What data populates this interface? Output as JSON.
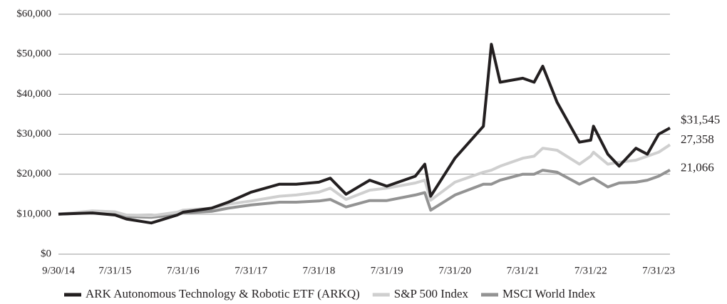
{
  "chart_data": {
    "type": "line",
    "x": [
      "2014-09-30",
      "2015-03-31",
      "2015-07-31",
      "2015-09-30",
      "2016-02-11",
      "2016-06-30",
      "2016-07-31",
      "2016-12-31",
      "2017-03-31",
      "2017-07-31",
      "2017-12-31",
      "2018-03-31",
      "2018-07-31",
      "2018-09-30",
      "2018-12-24",
      "2019-04-30",
      "2019-07-31",
      "2019-12-31",
      "2020-02-20",
      "2020-03-23",
      "2020-07-31",
      "2020-12-31",
      "2021-02-12",
      "2021-03-31",
      "2021-07-31",
      "2021-09-30",
      "2021-11-15",
      "2022-01-31",
      "2022-05-31",
      "2022-07-31",
      "2022-08-15",
      "2022-10-31",
      "2022-12-31",
      "2023-03-31",
      "2023-05-31",
      "2023-07-31",
      "2023-09-30"
    ],
    "series": [
      {
        "name": "ARK Autonomous Technology & Robotic ETF (ARKQ)",
        "color": "#231f20",
        "values": [
          10000,
          10300,
          9800,
          8800,
          7800,
          9800,
          10500,
          11500,
          13000,
          15500,
          17500,
          17500,
          18000,
          19000,
          15000,
          18500,
          17000,
          19500,
          22500,
          14500,
          24000,
          32000,
          52500,
          43000,
          44000,
          43000,
          47000,
          38000,
          28000,
          28500,
          32000,
          25000,
          22000,
          26500,
          25000,
          30000,
          31545
        ],
        "value_labels": [
          null,
          null,
          null,
          null,
          null,
          null,
          null,
          null,
          null,
          null,
          null,
          null,
          null,
          null,
          null,
          null,
          null,
          null,
          null,
          null,
          null,
          null,
          null,
          null,
          null,
          null,
          null,
          null,
          null,
          null,
          null,
          null,
          null,
          null,
          null,
          null,
          "$31,545"
        ]
      },
      {
        "name": "S&P 500 Index",
        "color": "#cfcfcf",
        "values": [
          10000,
          10800,
          10600,
          9800,
          9600,
          10500,
          11000,
          11500,
          12500,
          13300,
          14500,
          14800,
          15500,
          16500,
          13700,
          16000,
          16500,
          17800,
          18500,
          13500,
          18000,
          20500,
          21000,
          22000,
          24000,
          24500,
          26500,
          26000,
          22500,
          24500,
          25500,
          22500,
          23000,
          23500,
          24500,
          25500,
          27358
        ],
        "value_labels": [
          null,
          null,
          null,
          null,
          null,
          null,
          null,
          null,
          null,
          null,
          null,
          null,
          null,
          null,
          null,
          null,
          null,
          null,
          null,
          null,
          null,
          null,
          null,
          null,
          null,
          null,
          null,
          null,
          null,
          null,
          null,
          null,
          null,
          null,
          null,
          null,
          "27,358"
        ]
      },
      {
        "name": "MSCI World Index",
        "color": "#939393",
        "values": [
          10000,
          10400,
          10200,
          9400,
          9200,
          9900,
          10300,
          10700,
          11500,
          12300,
          13000,
          13000,
          13300,
          13700,
          11800,
          13400,
          13400,
          14800,
          15400,
          11000,
          14800,
          17500,
          17500,
          18500,
          20000,
          20000,
          21000,
          20500,
          17500,
          18800,
          19000,
          16800,
          17800,
          18000,
          18500,
          19500,
          21066
        ],
        "value_labels": [
          null,
          null,
          null,
          null,
          null,
          null,
          null,
          null,
          null,
          null,
          null,
          null,
          null,
          null,
          null,
          null,
          null,
          null,
          null,
          null,
          null,
          null,
          null,
          null,
          null,
          null,
          null,
          null,
          null,
          null,
          null,
          null,
          null,
          null,
          null,
          null,
          "21,066"
        ]
      }
    ],
    "xlim": [
      "2014-09-30",
      "2023-09-30"
    ],
    "xticks": [
      {
        "value": "2014-09-30",
        "label": "9/30/14"
      },
      {
        "value": "2015-07-31",
        "label": "7/31/15"
      },
      {
        "value": "2016-07-31",
        "label": "7/31/16"
      },
      {
        "value": "2017-07-31",
        "label": "7/31/17"
      },
      {
        "value": "2018-07-31",
        "label": "7/31/18"
      },
      {
        "value": "2019-07-31",
        "label": "7/31/19"
      },
      {
        "value": "2020-07-31",
        "label": "7/31/20"
      },
      {
        "value": "2021-07-31",
        "label": "7/31/21"
      },
      {
        "value": "2022-07-31",
        "label": "7/31/22"
      },
      {
        "value": "2023-07-31",
        "label": "7/31/23"
      }
    ],
    "ylim": [
      0,
      60000
    ],
    "yticks": [
      {
        "value": 0,
        "label": "$0"
      },
      {
        "value": 10000,
        "label": "$10,000"
      },
      {
        "value": 20000,
        "label": "$20,000"
      },
      {
        "value": 30000,
        "label": "$30,000"
      },
      {
        "value": 40000,
        "label": "$40,000"
      },
      {
        "value": 50000,
        "label": "$50,000"
      },
      {
        "value": 60000,
        "label": "$60,000"
      }
    ],
    "grid": true,
    "legend": "bottom"
  }
}
